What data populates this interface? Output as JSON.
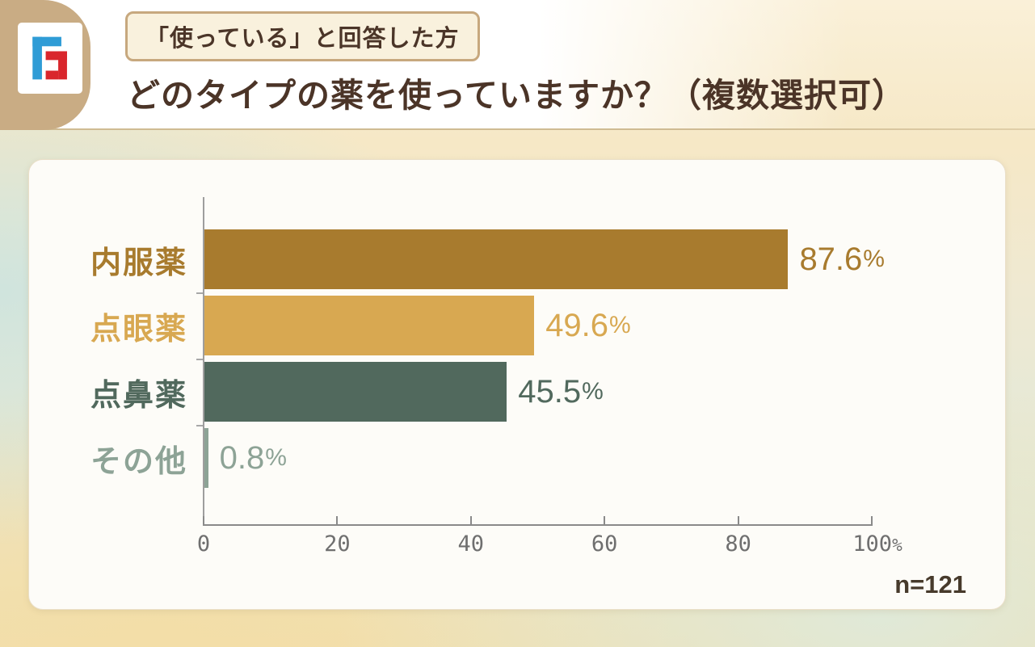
{
  "header": {
    "badge": "「使っている」と回答した方",
    "title": "どのタイプの薬を使っていますか？（複数選択可）",
    "logo": {
      "name": "brand-monogram-logo",
      "colors": {
        "blue": "#2f9cd6",
        "red": "#d9262c",
        "backdrop": "#c9ac84"
      }
    }
  },
  "chart_data": {
    "type": "bar",
    "orientation": "horizontal",
    "title": "どのタイプの薬を使っていますか？（複数選択可）",
    "subtitle": "「使っている」と回答した方",
    "categories": [
      "内服薬",
      "点眼薬",
      "点鼻薬",
      "その他"
    ],
    "values": [
      87.6,
      49.6,
      45.5,
      0.8
    ],
    "value_labels": [
      "87.6%",
      "49.6%",
      "45.5%",
      "0.8%"
    ],
    "bar_colors": [
      "#a87b2e",
      "#d8a851",
      "#51695d",
      "#8da396"
    ],
    "xlim": [
      0,
      100
    ],
    "x_ticks": [
      0,
      20,
      40,
      60,
      80,
      100
    ],
    "x_tick_labels": [
      "0",
      "20",
      "40",
      "60",
      "80",
      "100"
    ],
    "x_axis_suffix": "%",
    "grid": false,
    "legend": false,
    "sample_size_label": "n=121"
  }
}
